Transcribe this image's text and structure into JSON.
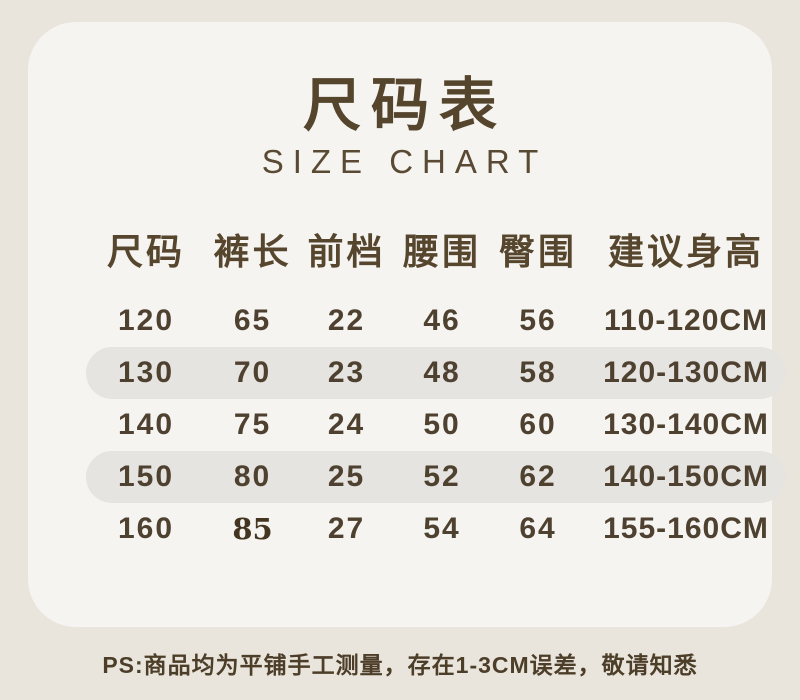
{
  "title": "尺码表",
  "subtitle": "SIZE CHART",
  "table": {
    "headers": [
      "尺码",
      "裤长",
      "前档",
      "腰围",
      "臀围",
      "建议身高"
    ],
    "rows": [
      {
        "size": "120",
        "pants_length": "65",
        "front_rise": "22",
        "waist": "46",
        "hip": "56",
        "height_range": "110-120CM"
      },
      {
        "size": "130",
        "pants_length": "70",
        "front_rise": "23",
        "waist": "48",
        "hip": "58",
        "height_range": "120-130CM"
      },
      {
        "size": "140",
        "pants_length": "75",
        "front_rise": "24",
        "waist": "50",
        "hip": "60",
        "height_range": "130-140CM"
      },
      {
        "size": "150",
        "pants_length": "80",
        "front_rise": "25",
        "waist": "52",
        "hip": "62",
        "height_range": "140-150CM"
      },
      {
        "size": "160",
        "pants_length": "85",
        "front_rise": "27",
        "waist": "54",
        "hip": "64",
        "height_range": "155-160CM"
      }
    ]
  },
  "footer": "PS:商品均为平铺手工测量，存在1-3CM误差，敬请知悉",
  "colors": {
    "page_bg": "#e9e5dc",
    "card_bg": "#f5f4f1",
    "row_highlight": "#e6e4e0",
    "text_brown": "#4f4130",
    "title_brown": "#55452c"
  }
}
